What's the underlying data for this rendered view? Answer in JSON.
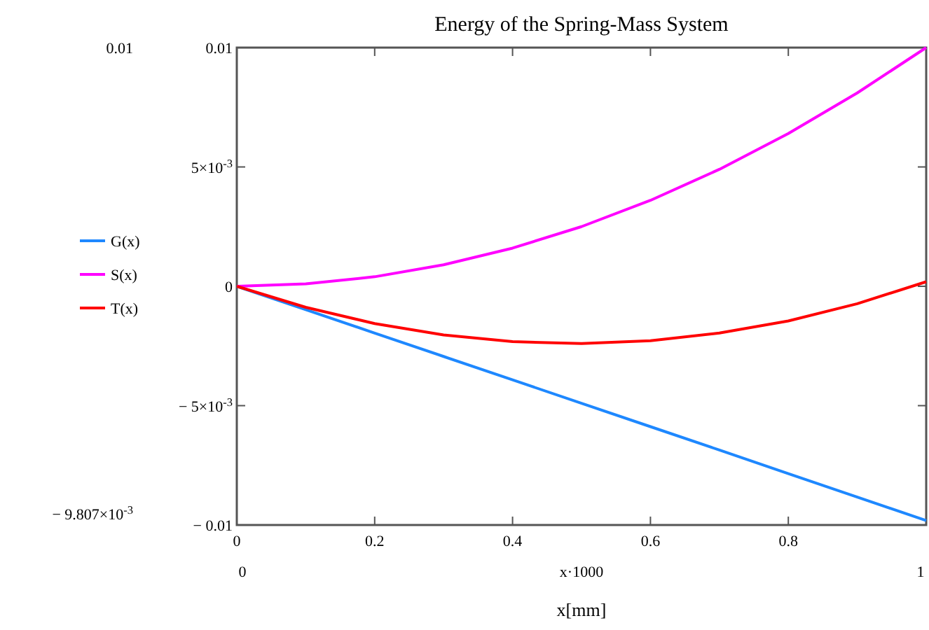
{
  "chart_data": {
    "type": "line",
    "title": "Energy of the Spring-Mass System",
    "xlabel": "x·1000",
    "x": [
      0,
      0.1,
      0.2,
      0.3,
      0.4,
      0.5,
      0.6,
      0.7,
      0.8,
      0.9,
      1
    ],
    "series": [
      {
        "name": "G(x)",
        "color": "#1e88ff",
        "values": [
          0,
          -0.00098,
          -0.00196,
          -0.00294,
          -0.00392,
          -0.0049,
          -0.00588,
          -0.00686,
          -0.00785,
          -0.00883,
          -0.00981
        ]
      },
      {
        "name": "S(x)",
        "color": "#ff00ff",
        "values": [
          0,
          0.0001,
          0.0004,
          0.0009,
          0.0016,
          0.0025,
          0.0036,
          0.0049,
          0.0064,
          0.0081,
          0.01
        ]
      },
      {
        "name": "T(x)",
        "color": "#ff0000",
        "values": [
          0,
          -0.00088,
          -0.00156,
          -0.00204,
          -0.00232,
          -0.0024,
          -0.00228,
          -0.00196,
          -0.00145,
          -0.00073,
          0.00019
        ]
      }
    ],
    "xlim": [
      0,
      1
    ],
    "xticks": [
      0,
      0.2,
      0.4,
      0.6,
      0.8,
      {
        "value": 1,
        "label": null
      }
    ],
    "ylim": [
      -0.01,
      0.01
    ],
    "yticks": [
      {
        "value": -0.01,
        "label": "− 0.01"
      },
      {
        "value": -0.005,
        "label": "− 5×10$^{-3}$"
      },
      0,
      {
        "value": 0.005,
        "label": "5×10$^{-3}$"
      },
      0.01
    ],
    "grid": false,
    "legend": "left",
    "marker": "none",
    "line_style": "solid",
    "annotations": [
      "0.01",
      "− 9.807×10$^{-3}$",
      "0",
      "1",
      "x[mm]"
    ]
  }
}
